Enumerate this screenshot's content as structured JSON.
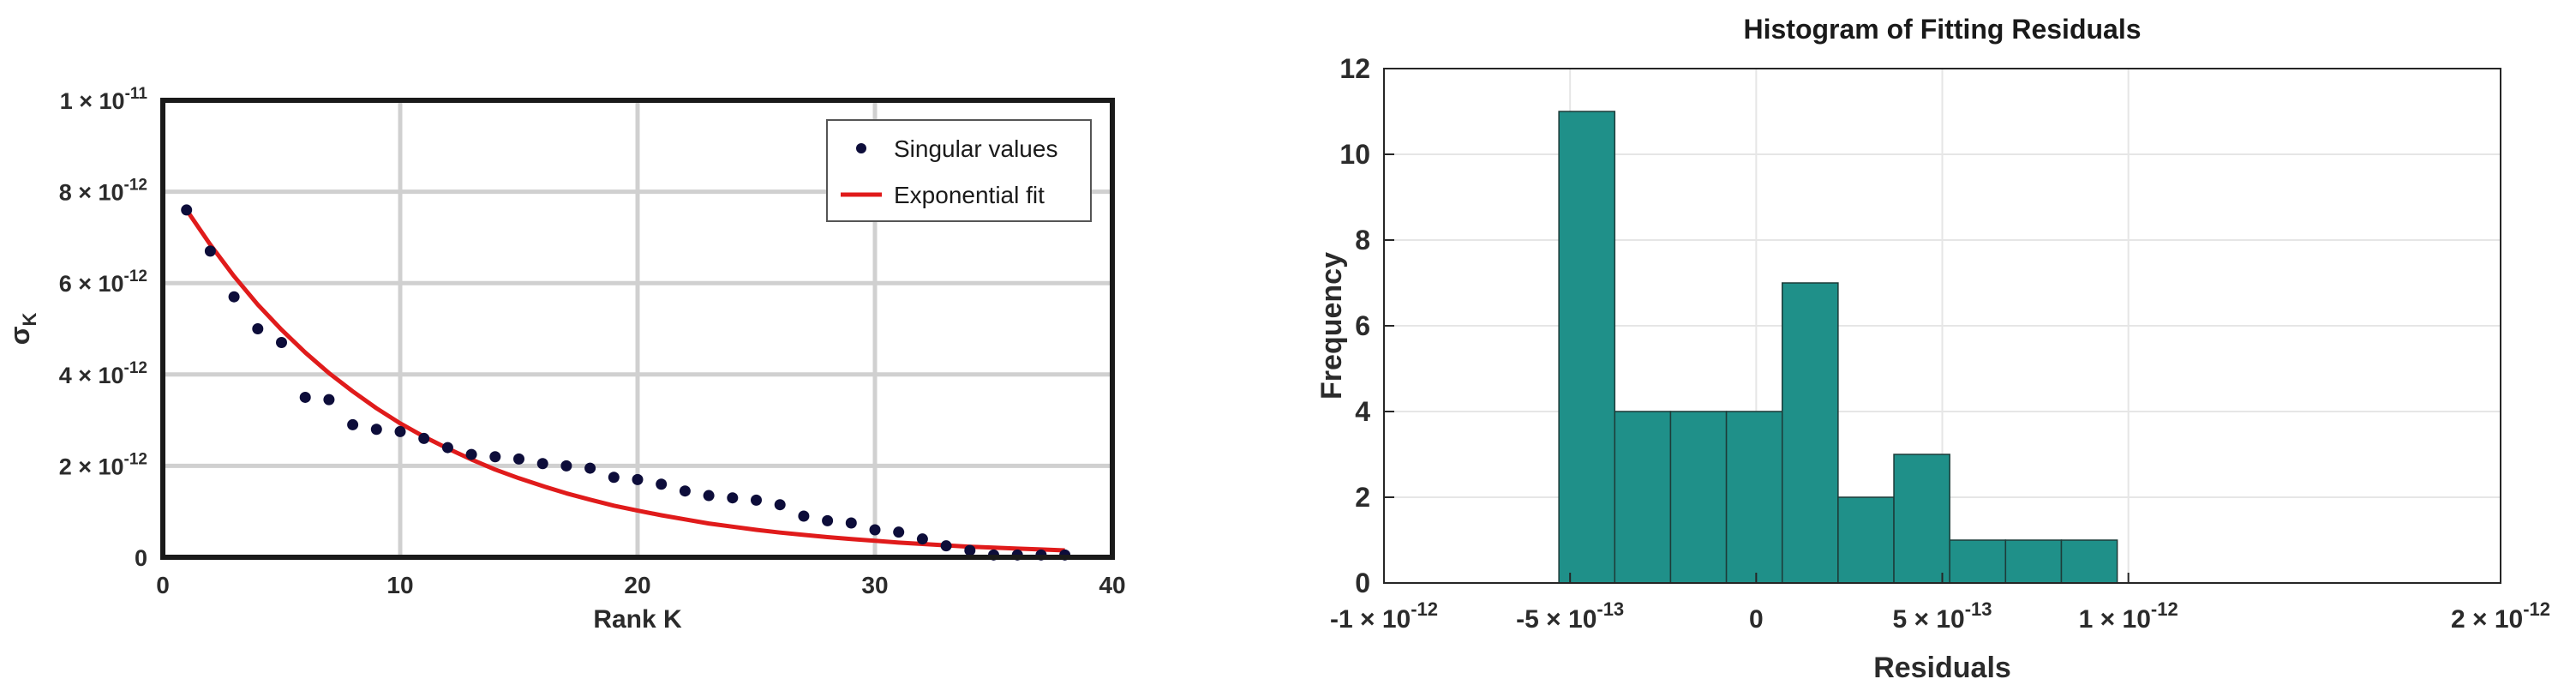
{
  "chart_data": [
    {
      "type": "scatter",
      "xlabel": "Rank K",
      "ylabel": "σ",
      "ylabel_sub": "K",
      "xlim": [
        0,
        40
      ],
      "ylim": [
        0,
        1e-11
      ],
      "grid": true,
      "legend_position": "top-right",
      "x_ticks": [
        {
          "value": 0,
          "label": "0"
        },
        {
          "value": 10,
          "label": "10"
        },
        {
          "value": 20,
          "label": "20"
        },
        {
          "value": 30,
          "label": "30"
        },
        {
          "value": 40,
          "label": "40"
        }
      ],
      "y_ticks": [
        {
          "value": 0,
          "base": "0",
          "exp": ""
        },
        {
          "value": 2e-12,
          "base": "2 × 10",
          "exp": "-12"
        },
        {
          "value": 4e-12,
          "base": "4 × 10",
          "exp": "-12"
        },
        {
          "value": 6e-12,
          "base": "6 × 10",
          "exp": "-12"
        },
        {
          "value": 8e-12,
          "base": "8 × 10",
          "exp": "-12"
        },
        {
          "value": 1e-11,
          "base": "1 × 10",
          "exp": "-11"
        }
      ],
      "series": [
        {
          "name": "Singular values",
          "kind": "points",
          "color": "#0d0d3a",
          "x": [
            1,
            2,
            3,
            4,
            5,
            6,
            7,
            8,
            9,
            10,
            11,
            12,
            13,
            14,
            15,
            16,
            17,
            18,
            19,
            20,
            21,
            22,
            23,
            24,
            25,
            26,
            27,
            28,
            29,
            30,
            31,
            32,
            33,
            34,
            35,
            36,
            37,
            38
          ],
          "y": [
            7.6e-12,
            6.7e-12,
            5.7e-12,
            5e-12,
            4.7e-12,
            3.5e-12,
            3.45e-12,
            2.9e-12,
            2.8e-12,
            2.75e-12,
            2.6e-12,
            2.4e-12,
            2.25e-12,
            2.2e-12,
            2.15e-12,
            2.05e-12,
            2e-12,
            1.95e-12,
            1.75e-12,
            1.7e-12,
            1.6e-12,
            1.45e-12,
            1.35e-12,
            1.3e-12,
            1.25e-12,
            1.15e-12,
            9e-13,
            8e-13,
            7.5e-13,
            6e-13,
            5.5e-13,
            4e-13,
            2.5e-13,
            1.5e-13,
            5e-14,
            5e-14,
            5e-14,
            5e-14
          ]
        },
        {
          "name": "Exponential fit",
          "kind": "line",
          "color": "#e01b1b",
          "x": [
            1,
            2,
            3,
            4,
            5,
            6,
            7,
            8,
            9,
            10,
            11,
            12,
            13,
            14,
            15,
            16,
            17,
            18,
            19,
            20,
            21,
            22,
            23,
            24,
            25,
            26,
            27,
            28,
            29,
            30,
            31,
            32,
            33,
            34,
            35,
            36,
            37,
            38
          ],
          "y": [
            7.6e-12,
            6.84e-12,
            6.15e-12,
            5.53e-12,
            4.98e-12,
            4.48e-12,
            4.03e-12,
            3.63e-12,
            3.26e-12,
            2.93e-12,
            2.64e-12,
            2.38e-12,
            2.14e-12,
            1.92e-12,
            1.73e-12,
            1.56e-12,
            1.4e-12,
            1.26e-12,
            1.13e-12,
            1.02e-12,
            9.2e-13,
            8.3e-13,
            7.4e-13,
            6.7e-13,
            6e-13,
            5.4e-13,
            4.9e-13,
            4.4e-13,
            4e-13,
            3.6e-13,
            3.2e-13,
            2.9e-13,
            2.6e-13,
            2.3e-13,
            2.1e-13,
            1.9e-13,
            1.7e-13,
            1.5e-13
          ]
        }
      ]
    },
    {
      "type": "bar",
      "title": "Histogram of Fitting Residuals",
      "xlabel": "Residuals",
      "ylabel": "Frequency",
      "xlim": [
        -1e-12,
        2e-12
      ],
      "ylim": [
        0,
        12
      ],
      "grid": true,
      "bar_color": "#1f9089",
      "x_ticks": [
        {
          "value": -1e-12,
          "base": "-1 × 10",
          "exp": "-12"
        },
        {
          "value": -5e-13,
          "base": "-5 × 10",
          "exp": "-13"
        },
        {
          "value": 0,
          "base": "0",
          "exp": ""
        },
        {
          "value": 5e-13,
          "base": "5 × 10",
          "exp": "-13"
        },
        {
          "value": 1e-12,
          "base": "1 × 10",
          "exp": "-12"
        },
        {
          "value": 2e-12,
          "base": "2 × 10",
          "exp": "-12"
        }
      ],
      "y_ticks": [
        0,
        2,
        4,
        6,
        8,
        10,
        12
      ],
      "bins": [
        {
          "x0": -5.3e-13,
          "x1": -3.8e-13,
          "count": 11
        },
        {
          "x0": -3.8e-13,
          "x1": -2.3e-13,
          "count": 4
        },
        {
          "x0": -2.3e-13,
          "x1": -8e-14,
          "count": 4
        },
        {
          "x0": -8e-14,
          "x1": 7e-14,
          "count": 4
        },
        {
          "x0": 7e-14,
          "x1": 2.2e-13,
          "count": 7
        },
        {
          "x0": 2.2e-13,
          "x1": 3.7e-13,
          "count": 2
        },
        {
          "x0": 3.7e-13,
          "x1": 5.2e-13,
          "count": 3
        },
        {
          "x0": 5.2e-13,
          "x1": 6.7e-13,
          "count": 1
        },
        {
          "x0": 6.7e-13,
          "x1": 8.2e-13,
          "count": 1
        },
        {
          "x0": 8.2e-13,
          "x1": 9.7e-13,
          "count": 1
        }
      ]
    }
  ]
}
